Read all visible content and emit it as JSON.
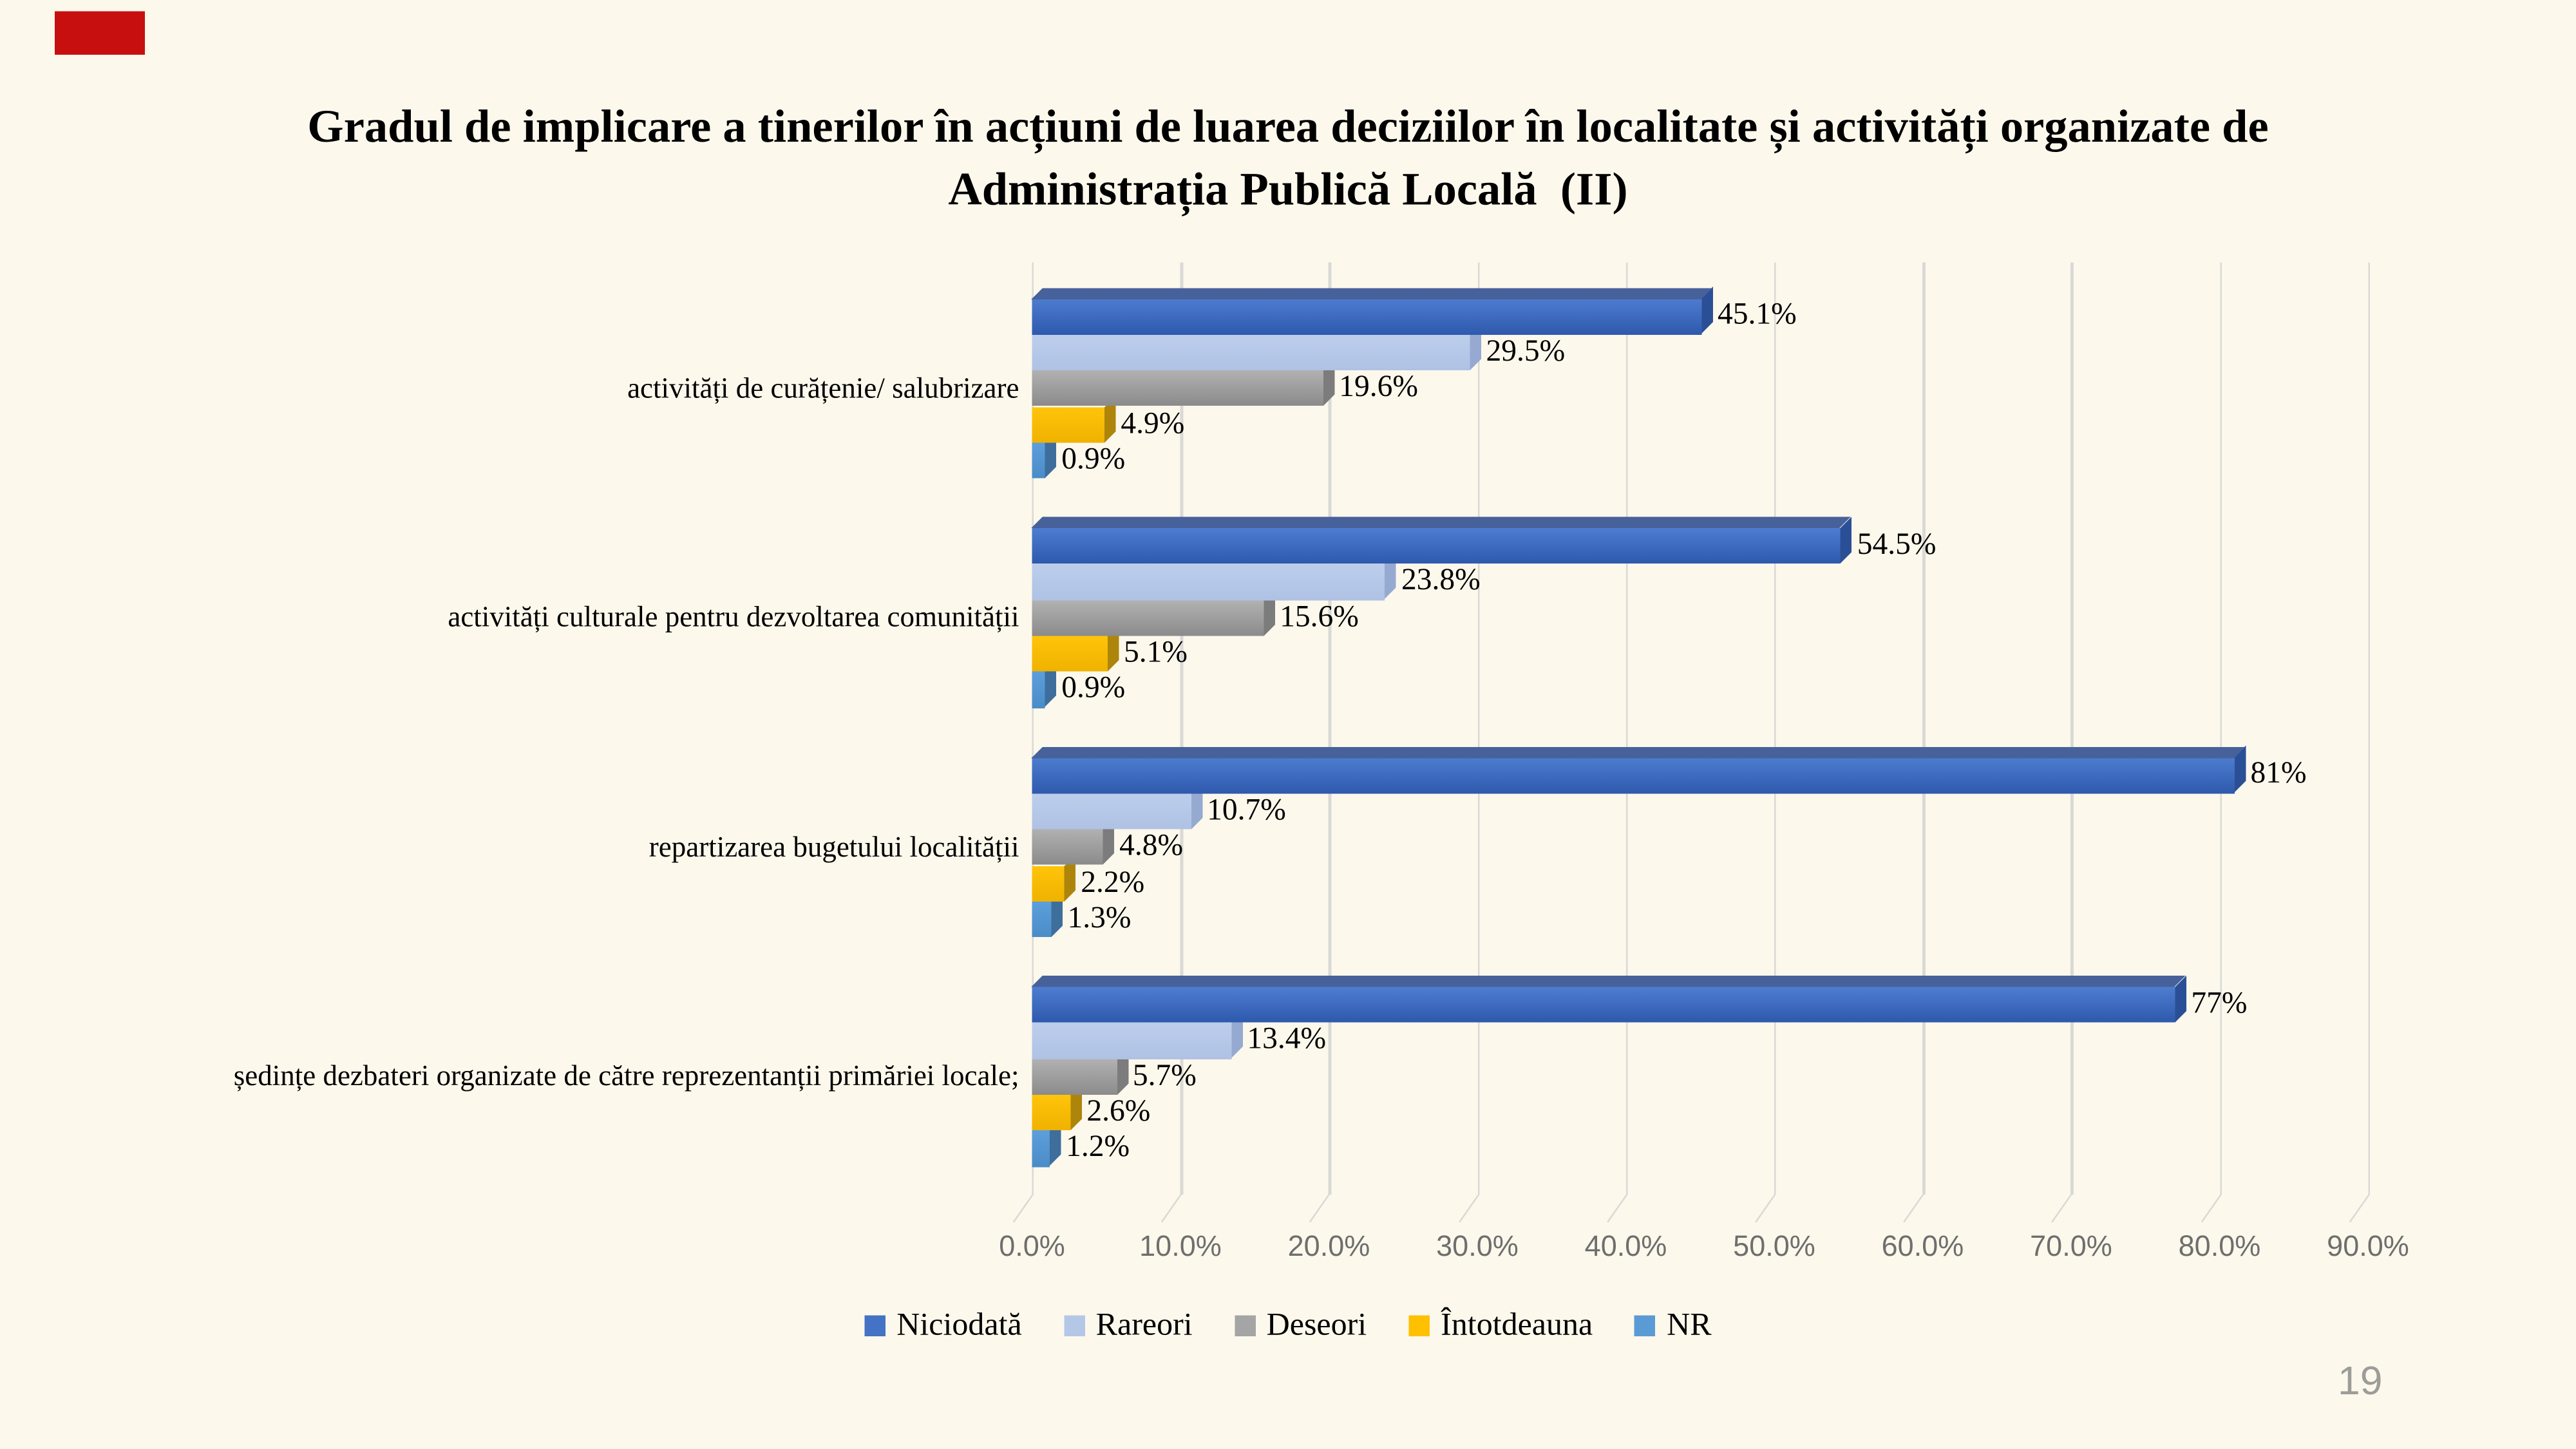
{
  "slide": {
    "background_color": "#FDF8EC",
    "marker_color": "#C80F0F",
    "title_line1": "Gradul de implicare a tinerilor în acțiuni de luarea deciziilor în localitate și activități organizate de",
    "title_line2": "Administrația Publică Locală  (II)",
    "page_number": "19"
  },
  "chart_data": {
    "type": "bar",
    "orientation": "horizontal",
    "effect": "3d",
    "title": "Gradul de implicare a tinerilor în acțiuni de luarea deciziilor în localitate și activități organizate de Administrația Publică Locală (II)",
    "categories": [
      "activități de curățenie/ salubrizare",
      "activități culturale pentru dezvoltarea comunității",
      "repartizarea bugetului localității",
      "ședințe dezbateri organizate de către reprezentanții primăriei locale;"
    ],
    "series": [
      {
        "name": "Niciodată",
        "color": "#4472C4",
        "face_top": "#4E7DD0",
        "face_bottom": "#2E59AD",
        "bevel_color": "#47619B",
        "side_color": "#2B4F96",
        "values": [
          45.1,
          54.5,
          81,
          77
        ],
        "labels": [
          "45.1%",
          "54.5%",
          "81%",
          "77%"
        ]
      },
      {
        "name": "Rareori",
        "color": "#B4C7E7",
        "face_top": "#BDCEEC",
        "face_bottom": "#AFC2E4",
        "bevel_color": "#9FB0CE",
        "side_color": "#96AAD1",
        "values": [
          29.5,
          23.8,
          10.7,
          13.4
        ],
        "labels": [
          "29.5%",
          "23.8%",
          "10.7%",
          "13.4%"
        ]
      },
      {
        "name": "Deseori",
        "color": "#A5A5A5",
        "face_top": "#B1B1B1",
        "face_bottom": "#8B8B8B",
        "bevel_color": "#868686",
        "side_color": "#7C7C7C",
        "values": [
          19.6,
          15.6,
          4.8,
          5.7
        ],
        "labels": [
          "19.6%",
          "15.6%",
          "4.8%",
          "5.7%"
        ]
      },
      {
        "name": "Întotdeauna",
        "color": "#FFC000",
        "face_top": "#FFC40A",
        "face_bottom": "#EFB200",
        "bevel_color": "#C29200",
        "side_color": "#AD850B",
        "values": [
          4.9,
          5.1,
          2.2,
          2.6
        ],
        "labels": [
          "4.9%",
          "5.1%",
          "2.2%",
          "2.6%"
        ]
      },
      {
        "name": "NR",
        "color": "#5B9BD5",
        "face_top": "#5C9FDA",
        "face_bottom": "#4A8CC7",
        "bevel_color": "#427199",
        "side_color": "#3E6E9C",
        "values": [
          0.9,
          0.9,
          1.3,
          1.2
        ],
        "labels": [
          "0.9%",
          "0.9%",
          "1.3%",
          "1.2%"
        ]
      }
    ],
    "x_ticks": [
      "0.0%",
      "10.0%",
      "20.0%",
      "30.0%",
      "40.0%",
      "50.0%",
      "60.0%",
      "70.0%",
      "80.0%",
      "90.0%"
    ],
    "xlim": [
      0,
      90
    ],
    "grid": true,
    "legend_position": "bottom",
    "grid_color": "#D9D9D6",
    "tick_color": "#6E6E6E"
  }
}
